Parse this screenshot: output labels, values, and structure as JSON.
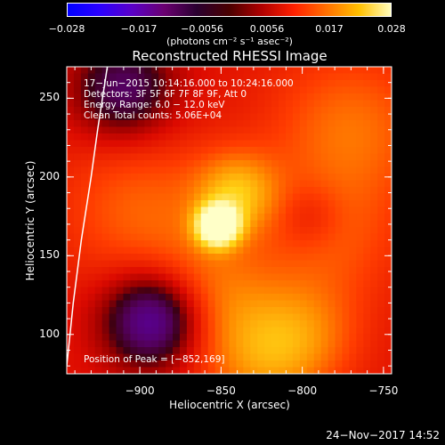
{
  "colorbar": {
    "ticks": [
      "−0.028",
      "−0.017",
      "−0.0056",
      "0.0056",
      "0.017",
      "0.028"
    ],
    "units": "(photons cm⁻² s⁻¹ asec⁻²)",
    "stops": [
      "#0000ff",
      "#2a00ff",
      "#5a00c8",
      "#6a0070",
      "#2a0030",
      "#4a0000",
      "#b00000",
      "#ff2000",
      "#ff7000",
      "#ffc000",
      "#ffffc0"
    ]
  },
  "title": "Reconstructed RHESSI Image",
  "info": [
    "17−Jun−2015 10:14:16.000 to 10:24:16.000",
    "Detectors: 3F 5F 6F 7F 8F 9F, Att 0",
    "Energy Range: 6.0 − 12.0 keV",
    "Clean     Total counts: 5.06E+04"
  ],
  "peak_label": "Position of Peak = [−852,169]",
  "footer_date": "24−Nov−2017 14:52",
  "chart_data": {
    "type": "heatmap",
    "title": "Reconstructed RHESSI Image",
    "xlabel": "Heliocentric X (arcsec)",
    "ylabel": "Heliocentric Y (arcsec)",
    "xlim": [
      -945,
      -745
    ],
    "ylim": [
      75,
      270
    ],
    "xticks": [
      -900,
      -850,
      -800,
      -750
    ],
    "yticks": [
      100,
      150,
      200,
      250
    ],
    "xtick_labels": [
      "−900",
      "−850",
      "−800",
      "−750"
    ],
    "ytick_labels": [
      "100",
      "150",
      "200",
      "250"
    ],
    "peak": [
      -852,
      169
    ],
    "colorbar_range": [
      -0.028,
      0.028
    ],
    "limb_curve": [
      [
        -945,
        80
      ],
      [
        -941,
        120
      ],
      [
        -936,
        160
      ],
      [
        -930,
        200
      ],
      [
        -926,
        230
      ],
      [
        -920,
        270
      ]
    ],
    "sources": [
      {
        "x": -852,
        "y": 169,
        "sigma": 9,
        "amp": 1.0
      },
      {
        "x": -840,
        "y": 190,
        "sigma": 18,
        "amp": 0.45
      },
      {
        "x": -860,
        "y": 120,
        "sigma": 30,
        "amp": 0.35
      },
      {
        "x": -800,
        "y": 100,
        "sigma": 25,
        "amp": 0.3
      },
      {
        "x": -770,
        "y": 230,
        "sigma": 35,
        "amp": 0.3
      },
      {
        "x": -900,
        "y": 180,
        "sigma": 35,
        "amp": 0.25
      },
      {
        "x": -780,
        "y": 160,
        "sigma": 30,
        "amp": 0.2
      },
      {
        "x": -825,
        "y": 80,
        "sigma": 25,
        "amp": 0.25
      }
    ],
    "sinks": [
      {
        "x": -890,
        "y": 110,
        "sigma": 22,
        "amp": -0.75
      },
      {
        "x": -910,
        "y": 255,
        "sigma": 22,
        "amp": -0.45
      },
      {
        "x": -795,
        "y": 175,
        "sigma": 14,
        "amp": -0.15
      }
    ]
  }
}
